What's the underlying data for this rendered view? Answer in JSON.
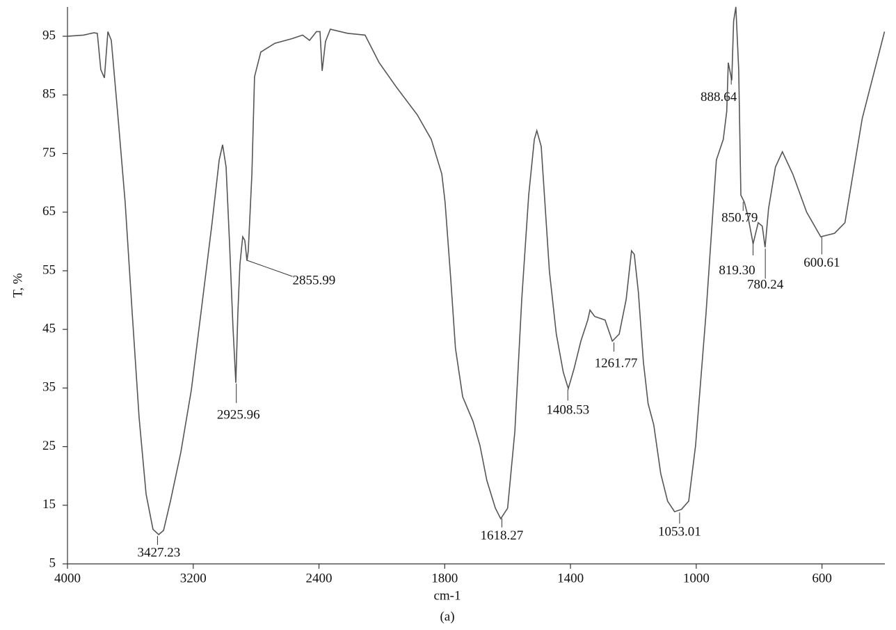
{
  "chart_data": {
    "type": "line",
    "x_label": "cm-1",
    "y_label": "T, %",
    "caption": "(a)",
    "xlim": [
      4000,
      400
    ],
    "xticks": [
      4000,
      3200,
      2400,
      1800,
      1400,
      1000,
      600
    ],
    "xscale": "tick-spaced",
    "ylim": [
      5,
      100
    ],
    "yticks": [
      5,
      15,
      25,
      35,
      45,
      55,
      65,
      75,
      85,
      95
    ],
    "color": "#555555",
    "grid": false,
    "x": [
      4000,
      3898,
      3832,
      3810,
      3788,
      3765,
      3743,
      3721,
      3677,
      3633,
      3588,
      3544,
      3500,
      3456,
      3420,
      3389,
      3345,
      3279,
      3212,
      3146,
      3080,
      3035,
      3013,
      2991,
      2969,
      2947,
      2929,
      2916,
      2903,
      2885,
      2872,
      2858,
      2850,
      2827,
      2810,
      2770,
      2681,
      2571,
      2504,
      2460,
      2416,
      2395,
      2385,
      2369,
      2346,
      2263,
      2180,
      2113,
      2030,
      1931,
      1864,
      1814,
      1799,
      1781,
      1766,
      1743,
      1710,
      1688,
      1666,
      1639,
      1622,
      1600,
      1577,
      1555,
      1533,
      1515,
      1507,
      1493,
      1467,
      1445,
      1423,
      1407,
      1389,
      1367,
      1345,
      1338,
      1323,
      1290,
      1267,
      1245,
      1223,
      1206,
      1197,
      1184,
      1168,
      1153,
      1135,
      1113,
      1091,
      1069,
      1047,
      1024,
      1002,
      969,
      936,
      914,
      903,
      898,
      887,
      881,
      874,
      865,
      858,
      847,
      836,
      819,
      803,
      790,
      781,
      770,
      748,
      726,
      693,
      649,
      604,
      560,
      527,
      472,
      401
    ],
    "values": [
      95.0,
      95.2,
      95.6,
      95.5,
      89.3,
      87.9,
      95.8,
      94.3,
      80.7,
      66.7,
      47.7,
      29.9,
      16.9,
      10.9,
      10.0,
      10.7,
      15.7,
      24.0,
      34.7,
      48.9,
      63.2,
      73.9,
      76.5,
      72.7,
      59.6,
      45.4,
      35.9,
      47.7,
      56.1,
      60.8,
      60.2,
      56.7,
      58.4,
      71.5,
      88.1,
      92.3,
      93.8,
      94.6,
      95.2,
      94.3,
      95.8,
      95.8,
      89.1,
      94.1,
      96.2,
      95.5,
      95.2,
      90.5,
      86.3,
      81.6,
      77.4,
      71.5,
      66.7,
      53.7,
      41.8,
      33.5,
      29.3,
      25.2,
      19.2,
      14.5,
      12.7,
      14.5,
      27.6,
      50.1,
      67.9,
      77.4,
      78.9,
      76.2,
      54.9,
      44.2,
      37.7,
      34.9,
      38.2,
      43.0,
      46.6,
      48.3,
      47.2,
      46.6,
      43.0,
      44.2,
      50.1,
      58.4,
      57.8,
      51.3,
      39.4,
      32.3,
      28.7,
      20.4,
      15.7,
      13.9,
      14.3,
      15.7,
      25.2,
      47.7,
      73.9,
      77.4,
      82.2,
      90.5,
      87.5,
      97.6,
      100,
      89.3,
      67.9,
      66.7,
      64.4,
      59.6,
      63.2,
      62.6,
      59.0,
      65.6,
      72.7,
      75.3,
      71.5,
      65.0,
      60.8,
      61.4,
      63.2,
      81.0,
      95.8
    ],
    "peaks": [
      {
        "x": 3427.23,
        "y": 10
      },
      {
        "x": 2925.96,
        "y": 36
      },
      {
        "x": 2855.99,
        "y": 57
      },
      {
        "x": 1618.27,
        "y": 13
      },
      {
        "x": 1408.53,
        "y": 35
      },
      {
        "x": 1261.77,
        "y": 43
      },
      {
        "x": 1053.01,
        "y": 14
      },
      {
        "x": 888.64,
        "y": 87
      },
      {
        "x": 850.79,
        "y": 67
      },
      {
        "x": 819.3,
        "label": "819.30",
        "y": 60
      },
      {
        "x": 780.24,
        "y": 59
      },
      {
        "x": 600.61,
        "y": 61
      }
    ]
  }
}
